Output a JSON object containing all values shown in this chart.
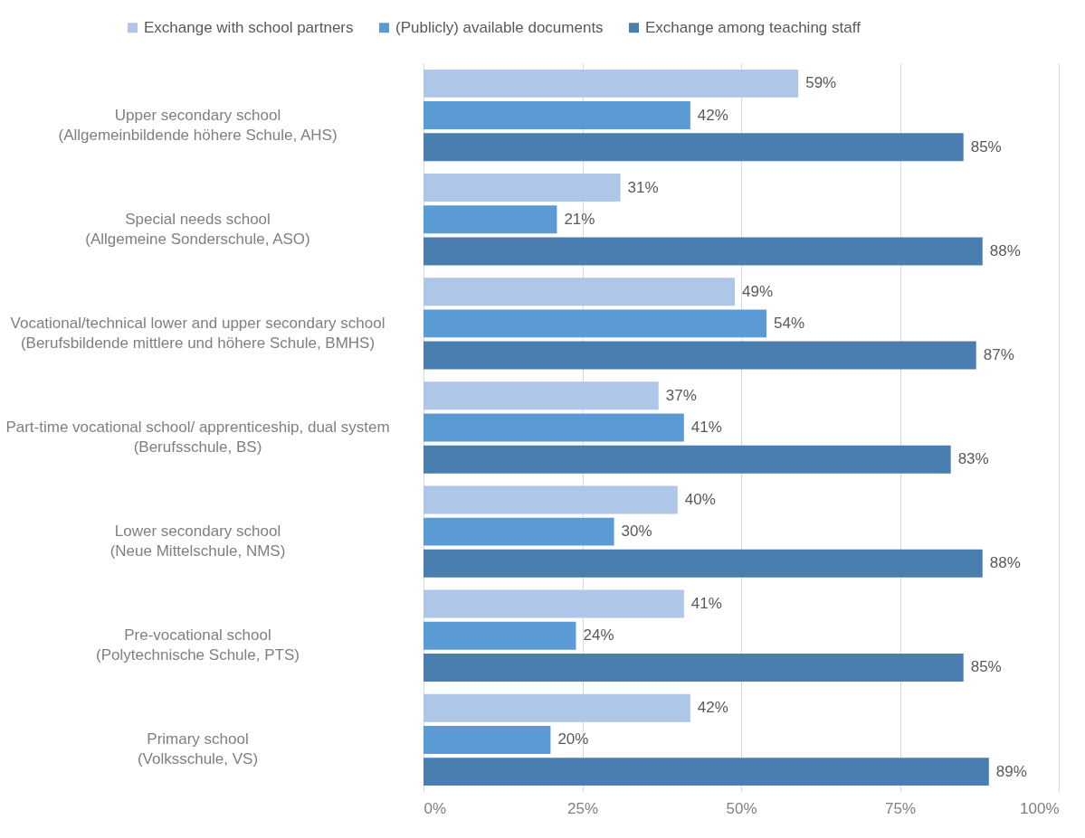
{
  "chart_data": {
    "type": "bar",
    "orientation": "horizontal",
    "categories": [
      "Upper secondary school\n(Allgemeinbildende höhere Schule, AHS)",
      "Special needs school\n(Allgemeine Sonderschule, ASO)",
      "Vocational/technical lower and upper secondary school\n(Berufsbildende mittlere und höhere Schule, BMHS)",
      "Part-time vocational school/ apprenticeship, dual system\n(Berufsschule, BS)",
      "Lower secondary school\n(Neue Mittelschule, NMS)",
      "Pre-vocational school\n(Polytechnische Schule, PTS)",
      "Primary school\n(Volksschule, VS)"
    ],
    "series": [
      {
        "name": "Exchange with school partners",
        "color": "#aec6e7",
        "values": [
          59,
          31,
          49,
          37,
          40,
          41,
          42
        ],
        "value_labels": [
          "59%",
          "31%",
          "49%",
          "37%",
          "40%",
          "41%",
          "42%"
        ]
      },
      {
        "name": "(Publicly) available documents",
        "color": "#5b9bd5",
        "values": [
          42,
          21,
          54,
          41,
          30,
          24,
          20
        ],
        "value_labels": [
          "42%",
          "21%",
          "54%",
          "41%",
          "30%",
          "24%",
          "20%"
        ]
      },
      {
        "name": "Exchange among teaching staff",
        "color": "#4a7eb0",
        "values": [
          85,
          88,
          87,
          83,
          88,
          85,
          89
        ],
        "value_labels": [
          "85%",
          "88%",
          "87%",
          "83%",
          "88%",
          "85%",
          "89%"
        ]
      }
    ],
    "xlim": [
      0,
      100
    ],
    "xticks": [
      {
        "value": 0,
        "label": "0%"
      },
      {
        "value": 25,
        "label": "25%"
      },
      {
        "value": 50,
        "label": "50%"
      },
      {
        "value": 75,
        "label": "75%"
      },
      {
        "value": 100,
        "label": "100%"
      }
    ],
    "grid": "x",
    "legend": "top"
  }
}
